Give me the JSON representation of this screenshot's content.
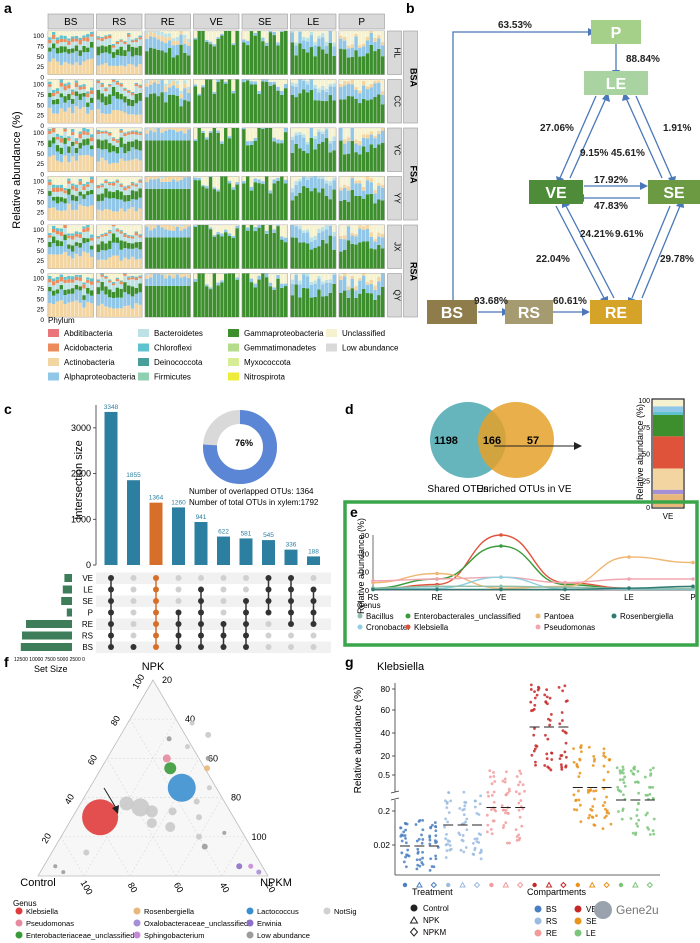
{
  "panels": {
    "a": "a",
    "b": "b",
    "c": "c",
    "d": "d",
    "e": "e",
    "f": "f",
    "g": "g"
  },
  "colors": {
    "green": "#3d8f2e",
    "lightgreen": "#a7d0a0",
    "teal": "#2c7fa0",
    "orange": "#d66f2a",
    "flowP": "#a5d08a",
    "flowLE": "#a9d4a1",
    "flowVE": "#4e8c39",
    "flowSE": "#6b9a43",
    "flowBS": "#8e7d4a",
    "flowRS": "#a59a70",
    "flowRE": "#d5a327",
    "panelEborder": "#3aa64a"
  },
  "panel_a": {
    "ylabel": "Relative abundance (%)",
    "columns": [
      "BS",
      "RS",
      "RE",
      "VE",
      "SE",
      "LE",
      "P"
    ],
    "rows": [
      "HL",
      "CC",
      "YC",
      "YY",
      "JX",
      "QY"
    ],
    "groups": [
      "BSA",
      "FSA",
      "RSA"
    ],
    "ticks": [
      "100",
      "75",
      "50",
      "25",
      "0"
    ],
    "legend_title": "Phylum",
    "legend": [
      {
        "name": "Abditibacteria",
        "color": "#e8767b"
      },
      {
        "name": "Acidobacteria",
        "color": "#ec8b5b"
      },
      {
        "name": "Actinobacteria",
        "color": "#f3d5a2"
      },
      {
        "name": "Alphaproteobacteria",
        "color": "#90c6e7"
      },
      {
        "name": "Bacteroidetes",
        "color": "#bde2e6"
      },
      {
        "name": "Chloroflexi",
        "color": "#5fc3cf"
      },
      {
        "name": "Deinococcota",
        "color": "#4a9e9a"
      },
      {
        "name": "Firmicutes",
        "color": "#8fd0b0"
      },
      {
        "name": "Gammaproteobacteria",
        "color": "#3d8f2e"
      },
      {
        "name": "Gemmatimonadetes",
        "color": "#b4dc8a"
      },
      {
        "name": "Myxococcota",
        "color": "#d7ec96"
      },
      {
        "name": "Nitrospirota",
        "color": "#eeec3a"
      },
      {
        "name": "Unclassified",
        "color": "#f6f2cf"
      },
      {
        "name": "Low abundance",
        "color": "#d9d9d9"
      }
    ]
  },
  "panel_b": {
    "nodes": {
      "P": "P",
      "LE": "LE",
      "VE": "VE",
      "SE": "SE",
      "BS": "BS",
      "RS": "RS",
      "RE": "RE"
    },
    "values": {
      "bs_p": "63.53%",
      "p_le": "88.84%",
      "le_ve": "27.06%",
      "ve_le": "9.15%",
      "se_le": "45.61%",
      "le_se": "1.91%",
      "ve_se": "17.92%",
      "se_ve": "47.83%",
      "re_ve": "24.21%",
      "ve_re": "22.04%",
      "se_re": "9.61%",
      "re_se": "29.78%",
      "bs_rs": "93.68%",
      "rs_re": "60.61%"
    }
  },
  "panel_c": {
    "ylabel": "Intersection size",
    "yticks": [
      "3000",
      "2000",
      "1000",
      "0"
    ],
    "bars": [
      {
        "value": 3348,
        "label": "3348",
        "highlight": false
      },
      {
        "value": 1855,
        "label": "1855",
        "highlight": false
      },
      {
        "value": 1364,
        "label": "1364",
        "highlight": true
      },
      {
        "value": 1260,
        "label": "1260",
        "highlight": false
      },
      {
        "value": 941,
        "label": "941",
        "highlight": false
      },
      {
        "value": 622,
        "label": "622",
        "highlight": false
      },
      {
        "value": 581,
        "label": "581",
        "highlight": false
      },
      {
        "value": 545,
        "label": "545",
        "highlight": false
      },
      {
        "value": 336,
        "label": "336",
        "highlight": false
      },
      {
        "value": 188,
        "label": "188",
        "highlight": false
      }
    ],
    "sets": [
      "VE",
      "LE",
      "SE",
      "P",
      "RE",
      "RS",
      "BS"
    ],
    "set_sizes": [
      1900,
      2300,
      2700,
      1300,
      11500,
      12500,
      12800
    ],
    "set_size_label": "Set Size",
    "set_ticks": "12500 10000 7500 5000 2500 0",
    "donut_percent": "76%",
    "donut_value": 76,
    "overlap_text": "Number of overlapped OTUs: 1364",
    "total_text": "Number of  total OTUs  in xylem:1792",
    "matrix": [
      [
        0,
        1,
        2,
        3,
        4,
        5,
        6
      ],
      [
        6
      ],
      [
        0,
        1,
        2,
        3,
        4,
        5,
        6
      ],
      [
        3,
        4,
        5,
        6
      ],
      [
        1,
        2,
        3,
        4,
        5,
        6
      ],
      [
        4,
        5,
        6
      ],
      [
        2,
        3,
        4,
        5,
        6
      ],
      [
        0,
        1,
        2,
        3
      ],
      [
        0,
        1,
        2,
        3,
        4
      ],
      [
        1,
        2,
        3,
        4
      ]
    ]
  },
  "panel_d": {
    "left_value": "1198",
    "mid_value": "166",
    "right_value": "57",
    "left_label": "Shared OTUs",
    "right_label": "Enriched OTUs in VE",
    "ylabel": "Relative abundance (%)",
    "xlabel": "VE",
    "ticks": [
      "100",
      "75",
      "50",
      "25",
      "0"
    ]
  },
  "panel_e": {
    "ylabel": "Relative abundance (%)",
    "yticks": [
      "30",
      "20",
      "10",
      "0"
    ],
    "x": [
      "RS",
      "RE",
      "VE",
      "SE",
      "LE",
      "P"
    ],
    "legend_title": "Genus",
    "legend": [
      {
        "name": "Bacillus",
        "color": "#8fbfa8"
      },
      {
        "name": "Cronobacter",
        "color": "#8fcfe0"
      },
      {
        "name": "Enterobacterales_unclassified",
        "color": "#3a9a3a"
      },
      {
        "name": "Klebsiella",
        "color": "#e0533b"
      },
      {
        "name": "Pantoea",
        "color": "#f0b774"
      },
      {
        "name": "Pseudomonas",
        "color": "#f0a5b0"
      },
      {
        "name": "Rosenbergiella",
        "color": "#2f7b73"
      }
    ]
  },
  "chart_data": {
    "type": "line",
    "x": [
      "RS",
      "RE",
      "VE",
      "SE",
      "LE",
      "P"
    ],
    "ylim": [
      0,
      30
    ],
    "ylabel": "Relative abundance (%)",
    "series": [
      {
        "name": "Klebsiella",
        "values": [
          0.5,
          3,
          30,
          4,
          1,
          1
        ]
      },
      {
        "name": "Enterobacterales_unclassified",
        "values": [
          1,
          6,
          24,
          3,
          0.5,
          0.5
        ]
      },
      {
        "name": "Pantoea",
        "values": [
          4,
          9,
          1,
          2,
          18,
          15
        ]
      },
      {
        "name": "Pseudomonas",
        "values": [
          5,
          6,
          7,
          4,
          6,
          6
        ]
      },
      {
        "name": "Cronobacter",
        "values": [
          0.5,
          1,
          7,
          0.5,
          0.5,
          0.5
        ]
      },
      {
        "name": "Bacillus",
        "values": [
          1,
          2,
          2,
          1.5,
          1,
          1
        ]
      },
      {
        "name": "Rosenbergiella",
        "values": [
          0.3,
          0.3,
          0.3,
          0.3,
          1,
          2
        ]
      }
    ]
  },
  "panel_f": {
    "top": "NPK",
    "left": "Control",
    "right": "NPKM",
    "ticks": [
      "20",
      "40",
      "60",
      "80",
      "100"
    ],
    "legend_title": "Genus",
    "legend": [
      {
        "name": "Klebsiella",
        "color": "#e03c3c"
      },
      {
        "name": "Pseudomonas",
        "color": "#e58aa0"
      },
      {
        "name": "Enterobacteriaceae_unclassified",
        "color": "#3a9a3a"
      },
      {
        "name": "Rosenbergiella",
        "color": "#e8b87a"
      },
      {
        "name": "Oxalobacteraceae_unclassified",
        "color": "#a58fd6"
      },
      {
        "name": "Sphingobacterium",
        "color": "#c48ad6"
      },
      {
        "name": "Lactococcus",
        "color": "#3a8fd0"
      },
      {
        "name": "Erwinia",
        "color": "#8c6fc9"
      },
      {
        "name": "Low abundance",
        "color": "#9c9c9c"
      },
      {
        "name": "NotSig",
        "color": "#d0d0d0"
      }
    ]
  },
  "panel_g": {
    "title": "Klebsiella",
    "ylabel": "Relative abundance (%)",
    "yticks": [
      "80",
      "60",
      "40",
      "20",
      "0.5",
      "0.2",
      "0.02"
    ],
    "treatment_title": "Treatment",
    "treatments": [
      "Control",
      "NPK",
      "NPKM"
    ],
    "compartment_title": "Compartments",
    "compartments": [
      {
        "name": "BS",
        "color": "#4a7fc1"
      },
      {
        "name": "RS",
        "color": "#9bbbe0"
      },
      {
        "name": "RE",
        "color": "#f29b9b"
      },
      {
        "name": "VE",
        "color": "#c62828"
      },
      {
        "name": "SE",
        "color": "#e8931c"
      },
      {
        "name": "LE",
        "color": "#7bc67b"
      }
    ],
    "watermark": "Gene2u"
  }
}
